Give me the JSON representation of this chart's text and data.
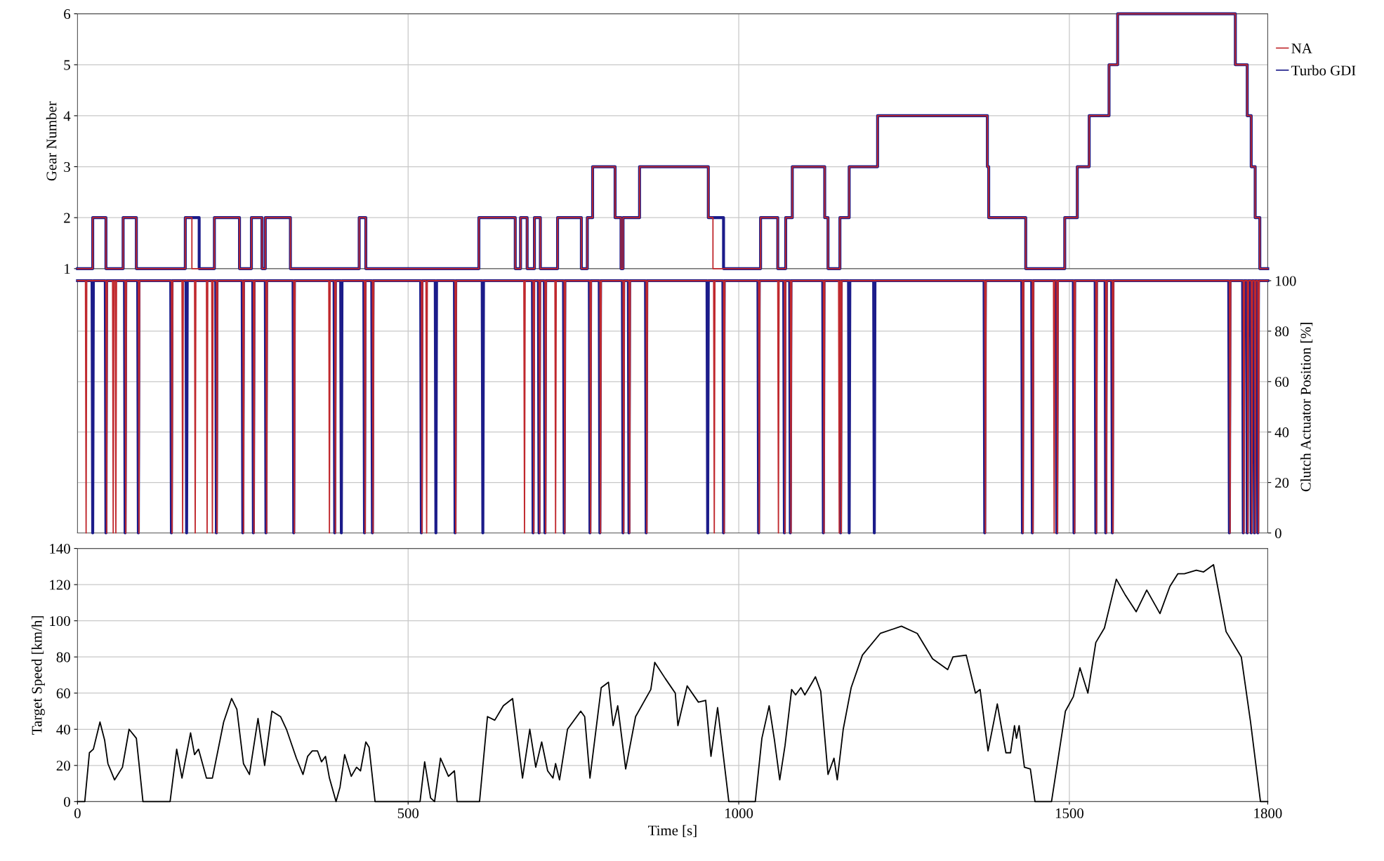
{
  "chart_data": [
    {
      "type": "step",
      "ylabel": "Gear Number",
      "xlim": [
        0,
        1800
      ],
      "xticks": [
        0,
        500,
        1000,
        1500,
        1800
      ],
      "ylim": [
        1,
        6
      ],
      "yticks": [
        1,
        2,
        3,
        4,
        5,
        6
      ],
      "tick_labels": "y",
      "grid": true,
      "legend": "top right",
      "series": [
        {
          "name": "NA",
          "color": "#c0282d",
          "x": [
            0,
            23,
            43,
            69,
            89,
            163,
            173,
            207,
            245,
            263,
            279,
            284,
            322,
            426,
            436,
            607,
            662,
            670,
            680,
            691,
            700,
            726,
            762,
            771,
            779,
            813,
            822,
            825,
            850,
            954,
            961,
            1033,
            1059,
            1071,
            1081,
            1130,
            1135,
            1153,
            1167,
            1210,
            1376,
            1378,
            1434,
            1493,
            1512,
            1530,
            1560,
            1573,
            1751,
            1769,
            1775,
            1781,
            1788,
            1800
          ],
          "values": [
            1,
            2,
            1,
            2,
            1,
            2,
            1,
            2,
            1,
            2,
            1,
            2,
            1,
            2,
            1,
            2,
            1,
            2,
            1,
            2,
            1,
            2,
            1,
            2,
            3,
            2,
            1,
            2,
            3,
            2,
            1,
            2,
            1,
            2,
            3,
            2,
            1,
            2,
            3,
            4,
            3,
            2,
            1,
            2,
            3,
            4,
            5,
            6,
            5,
            4,
            3,
            2,
            1,
            1
          ]
        },
        {
          "name": "Turbo GDI",
          "color": "#1c1c8a",
          "x": [
            0,
            23,
            43,
            69,
            89,
            163,
            184,
            207,
            245,
            263,
            279,
            284,
            322,
            426,
            436,
            607,
            662,
            670,
            680,
            691,
            700,
            726,
            762,
            771,
            779,
            813,
            822,
            825,
            850,
            954,
            977,
            1033,
            1059,
            1071,
            1081,
            1130,
            1135,
            1153,
            1167,
            1210,
            1376,
            1378,
            1434,
            1493,
            1512,
            1530,
            1560,
            1573,
            1751,
            1769,
            1775,
            1781,
            1788,
            1800
          ],
          "values": [
            1,
            2,
            1,
            2,
            1,
            2,
            1,
            2,
            1,
            2,
            1,
            2,
            1,
            2,
            1,
            2,
            1,
            2,
            1,
            2,
            1,
            2,
            1,
            2,
            3,
            2,
            1,
            2,
            3,
            2,
            1,
            2,
            1,
            2,
            3,
            2,
            1,
            2,
            3,
            4,
            3,
            2,
            1,
            2,
            3,
            4,
            5,
            6,
            5,
            4,
            3,
            2,
            1,
            1
          ]
        }
      ]
    },
    {
      "type": "line",
      "ylabel": "Clutch Actuator Position [%]",
      "xlim": [
        0,
        1800
      ],
      "xticks": [
        0,
        500,
        1000,
        1500,
        1800
      ],
      "ylim": [
        0,
        100
      ],
      "yticks": [
        0,
        20,
        40,
        60,
        80,
        100
      ],
      "tick_labels": "y",
      "grid": true,
      "series": [
        {
          "color": "#c0282d",
          "x": [
            0,
            12,
            13,
            14,
            43,
            44,
            45,
            53,
            54,
            55,
            57,
            58,
            59,
            72,
            73,
            74,
            92,
            93,
            94,
            142,
            143,
            144,
            158,
            159,
            160,
            177,
            178,
            179,
            195,
            196,
            197,
            203,
            204,
            205,
            210,
            211,
            212,
            250,
            251,
            252,
            266,
            267,
            268,
            285,
            286,
            287,
            327,
            328,
            329,
            380,
            381,
            382,
            389,
            390,
            391,
            434,
            435,
            436,
            446,
            447,
            448,
            520,
            521,
            522,
            527,
            528,
            529,
            571,
            572,
            573,
            675,
            676,
            677,
            689,
            690,
            691,
            698,
            699,
            700,
            707,
            708,
            709,
            722,
            723,
            724,
            736,
            737,
            738,
            775,
            776,
            777,
            790,
            791,
            792,
            825,
            826,
            827,
            834,
            835,
            836,
            860,
            861,
            862,
            962,
            963,
            964,
            977,
            978,
            979,
            1030,
            1031,
            1032,
            1059,
            1060,
            1061,
            1069,
            1070,
            1071,
            1078,
            1079,
            1080,
            1128,
            1129,
            1130,
            1151,
            1152,
            1153,
            1154,
            1155,
            1156,
            1372,
            1373,
            1374,
            1429,
            1430,
            1431,
            1444,
            1445,
            1446,
            1476,
            1477,
            1478,
            1481,
            1482,
            1483,
            1507,
            1508,
            1509,
            1540,
            1541,
            1542,
            1555,
            1556,
            1557,
            1565,
            1566,
            1567,
            1742,
            1743,
            1744,
            1763,
            1764,
            1765,
            1769,
            1770,
            1771,
            1775,
            1776,
            1777,
            1780,
            1781,
            1782,
            1785,
            1786,
            1787,
            1800
          ],
          "values": [
            100,
            100,
            0,
            100,
            100,
            0,
            100,
            100,
            0,
            100,
            100,
            0,
            100,
            100,
            0,
            100,
            100,
            0,
            100,
            100,
            0,
            100,
            100,
            0,
            100,
            100,
            0,
            100,
            100,
            0,
            100,
            100,
            0,
            100,
            100,
            0,
            100,
            100,
            0,
            100,
            100,
            0,
            100,
            100,
            0,
            100,
            100,
            0,
            100,
            100,
            0,
            100,
            100,
            0,
            100,
            100,
            0,
            100,
            100,
            0,
            100,
            100,
            0,
            100,
            100,
            0,
            100,
            100,
            0,
            100,
            100,
            0,
            100,
            100,
            0,
            100,
            100,
            0,
            100,
            100,
            0,
            100,
            100,
            0,
            100,
            100,
            0,
            100,
            100,
            0,
            100,
            100,
            0,
            100,
            100,
            0,
            100,
            100,
            0,
            100,
            100,
            0,
            100,
            100,
            0,
            100,
            100,
            0,
            100,
            100,
            0,
            100,
            100,
            0,
            100,
            100,
            0,
            100,
            100,
            0,
            100,
            100,
            0,
            100,
            100,
            0,
            100,
            100,
            0,
            100,
            100,
            0,
            100,
            100,
            0,
            100,
            100,
            0,
            100,
            100,
            0,
            100,
            100,
            0,
            100,
            100,
            0,
            100,
            100,
            0,
            100,
            100,
            0,
            100,
            100,
            0,
            100,
            100,
            0,
            100,
            100,
            0,
            100,
            100,
            0,
            100,
            100,
            0,
            100,
            100,
            0,
            100,
            100,
            0,
            100,
            100
          ]
        },
        {
          "color": "#1c1c8a",
          "x": [
            0,
            22,
            23,
            24,
            42,
            43,
            44,
            71,
            72,
            73,
            91,
            92,
            93,
            141,
            142,
            143,
            164,
            165,
            166,
            209,
            210,
            211,
            249,
            250,
            251,
            265,
            266,
            267,
            284,
            285,
            286,
            326,
            327,
            328,
            388,
            389,
            390,
            398,
            399,
            400,
            433,
            434,
            435,
            445,
            446,
            447,
            519,
            520,
            521,
            541,
            542,
            543,
            570,
            571,
            572,
            612,
            613,
            614,
            688,
            689,
            690,
            697,
            698,
            699,
            706,
            707,
            708,
            735,
            736,
            737,
            774,
            775,
            776,
            789,
            790,
            791,
            824,
            825,
            826,
            833,
            834,
            835,
            859,
            860,
            861,
            952,
            953,
            954,
            976,
            977,
            978,
            1029,
            1030,
            1031,
            1068,
            1069,
            1070,
            1077,
            1078,
            1079,
            1127,
            1128,
            1129,
            1153,
            1154,
            1155,
            1166,
            1167,
            1168,
            1204,
            1205,
            1206,
            1371,
            1372,
            1373,
            1428,
            1429,
            1430,
            1443,
            1444,
            1445,
            1480,
            1481,
            1482,
            1506,
            1507,
            1508,
            1539,
            1540,
            1541,
            1554,
            1555,
            1556,
            1564,
            1565,
            1566,
            1741,
            1742,
            1743,
            1762,
            1763,
            1764,
            1768,
            1769,
            1770,
            1774,
            1775,
            1776,
            1779,
            1780,
            1781,
            1784,
            1785,
            1786,
            1800
          ],
          "values": [
            100,
            100,
            0,
            100,
            100,
            0,
            100,
            100,
            0,
            100,
            100,
            0,
            100,
            100,
            0,
            100,
            100,
            0,
            100,
            100,
            0,
            100,
            100,
            0,
            100,
            100,
            0,
            100,
            100,
            0,
            100,
            100,
            0,
            100,
            100,
            0,
            100,
            100,
            0,
            100,
            100,
            0,
            100,
            100,
            0,
            100,
            100,
            0,
            100,
            100,
            0,
            100,
            100,
            0,
            100,
            100,
            0,
            100,
            100,
            0,
            100,
            100,
            0,
            100,
            100,
            0,
            100,
            100,
            0,
            100,
            100,
            0,
            100,
            100,
            0,
            100,
            100,
            0,
            100,
            100,
            0,
            100,
            100,
            0,
            100,
            100,
            0,
            100,
            100,
            0,
            100,
            100,
            0,
            100,
            100,
            0,
            100,
            100,
            0,
            100,
            100,
            0,
            100,
            100,
            0,
            100,
            100,
            0,
            100,
            100,
            0,
            100,
            100,
            0,
            100,
            100,
            0,
            100,
            100,
            0,
            100,
            100,
            0,
            100,
            100,
            0,
            100,
            100,
            0,
            100,
            100,
            0,
            100,
            100,
            0,
            100,
            100,
            0,
            100,
            100,
            0,
            100,
            100,
            0,
            100,
            100,
            0,
            100,
            100,
            0,
            100,
            100,
            0,
            100,
            100
          ]
        }
      ]
    },
    {
      "type": "line",
      "xlabel": "Time [s]",
      "ylabel": "Target Speed [km/h]",
      "xlim": [
        0,
        1800
      ],
      "xticks": [
        0,
        500,
        1000,
        1500,
        1800
      ],
      "ylim": [
        0,
        140
      ],
      "yticks": [
        0,
        20,
        40,
        60,
        80,
        100,
        120,
        140
      ],
      "grid": true,
      "series": [
        {
          "color": "#000000",
          "x": [
            0,
            11,
            18,
            24,
            34,
            41,
            46,
            56,
            68,
            78,
            89,
            99,
            140,
            150,
            158,
            171,
            177,
            183,
            195,
            204,
            221,
            233,
            241,
            251,
            260,
            273,
            283,
            294,
            307,
            316,
            331,
            341,
            348,
            355,
            363,
            369,
            375,
            381,
            391,
            397,
            404,
            414,
            422,
            428,
            436,
            441,
            450,
            518,
            525,
            534,
            540,
            549,
            561,
            570,
            574,
            608,
            620,
            631,
            644,
            658,
            673,
            684,
            693,
            702,
            711,
            719,
            723,
            729,
            741,
            761,
            767,
            775,
            792,
            803,
            810,
            817,
            829,
            844,
            867,
            873,
            889,
            904,
            908,
            922,
            939,
            950,
            958,
            968,
            985,
            1025,
            1035,
            1046,
            1054,
            1062,
            1070,
            1080,
            1086,
            1094,
            1100,
            1108,
            1116,
            1124,
            1135,
            1144,
            1149,
            1158,
            1170,
            1187,
            1214,
            1246,
            1270,
            1293,
            1316,
            1324,
            1344,
            1358,
            1365,
            1377,
            1391,
            1404,
            1411,
            1417,
            1420,
            1424,
            1432,
            1441,
            1448,
            1473,
            1494,
            1506,
            1516,
            1528,
            1540,
            1553,
            1571,
            1585,
            1601,
            1617,
            1637,
            1652,
            1664,
            1674,
            1692,
            1703,
            1718,
            1737,
            1760,
            1774,
            1789,
            1800
          ],
          "values": [
            0,
            0,
            27,
            29,
            44,
            34,
            21,
            12,
            19,
            40,
            35,
            0,
            0,
            29,
            13,
            38,
            26,
            29,
            13,
            13,
            44,
            57,
            51,
            21,
            15,
            46,
            20,
            50,
            47,
            40,
            24,
            15,
            25,
            28,
            28,
            22,
            25,
            13,
            0,
            8,
            26,
            14,
            19,
            17,
            33,
            30,
            0,
            0,
            22,
            2,
            0,
            24,
            14,
            17,
            0,
            0,
            47,
            45,
            53,
            57,
            13,
            40,
            19,
            33,
            17,
            13,
            21,
            12,
            40,
            50,
            47,
            13,
            63,
            66,
            42,
            53,
            18,
            47,
            62,
            77,
            68,
            60,
            42,
            64,
            55,
            56,
            25,
            52,
            0,
            0,
            35,
            53,
            34,
            12,
            31,
            62,
            59,
            63,
            59,
            64,
            69,
            61,
            15,
            24,
            12,
            40,
            63,
            81,
            93,
            97,
            93,
            79,
            73,
            80,
            81,
            60,
            62,
            28,
            54,
            27,
            27,
            42,
            35,
            42,
            19,
            18,
            0,
            0,
            50,
            58,
            74,
            60,
            88,
            96,
            123,
            114,
            105,
            117,
            104,
            119,
            126,
            126,
            128,
            127,
            131,
            94,
            80,
            44,
            0,
            0
          ]
        }
      ]
    }
  ]
}
